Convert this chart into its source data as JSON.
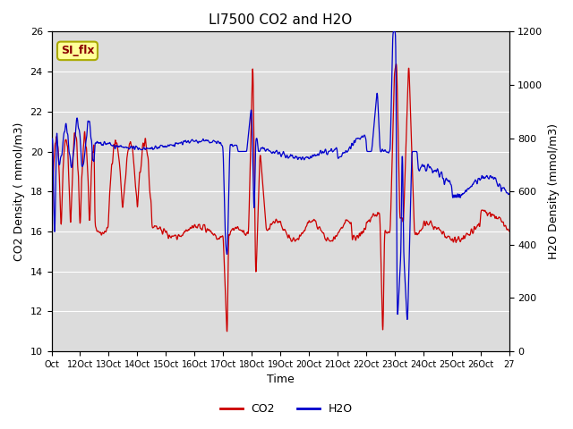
{
  "title": "LI7500 CO2 and H2O",
  "xlabel": "Time",
  "ylabel_left": "CO2 Density ( mmol/m3)",
  "ylabel_right": "H2O Density (mmol/m3)",
  "ylim_left": [
    10,
    26
  ],
  "ylim_right": [
    0,
    1200
  ],
  "yticks_left": [
    10,
    12,
    14,
    16,
    18,
    20,
    22,
    24,
    26
  ],
  "yticks_right": [
    0,
    200,
    400,
    600,
    800,
    1000,
    1200
  ],
  "xtick_labels": [
    "Oct",
    "12Oct",
    "13Oct",
    "14Oct",
    "15Oct",
    "16Oct",
    "17Oct",
    "18Oct",
    "19Oct",
    "20Oct",
    "21Oct",
    "22Oct",
    "23Oct",
    "24Oct",
    "25Oct",
    "26Oct",
    "27"
  ],
  "annotation_text": "SI_flx",
  "co2_color": "#CC0000",
  "h2o_color": "#0000CC",
  "background_color": "#DCDCDC",
  "grid_color": "#FFFFFF",
  "legend_co2": "CO2",
  "legend_h2o": "H2O"
}
